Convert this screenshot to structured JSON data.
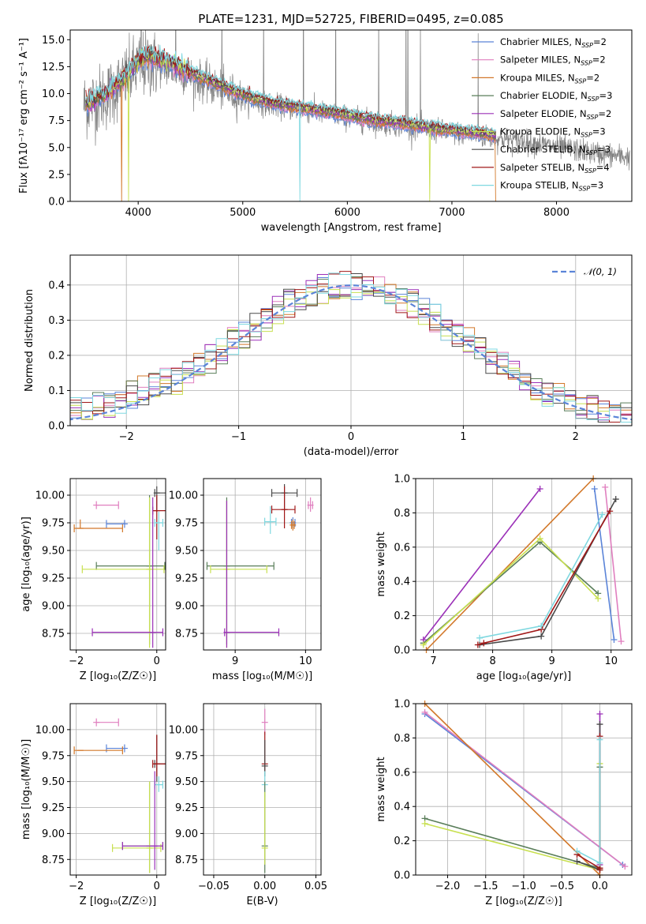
{
  "colors": {
    "Chabrier MILES": "#5b84d8",
    "Salpeter MILES": "#e07fbf",
    "Kroupa MILES": "#d2782a",
    "Chabrier ELODIE": "#5a7e5a",
    "Salpeter ELODIE": "#9b30b8",
    "Kroupa ELODIE": "#c8e050",
    "Chabrier STELIB": "#4a4a4a",
    "Salpeter STELIB": "#a01818",
    "Kroupa STELIB": "#7fd8e0"
  },
  "chart_data": [
    {
      "type": "line",
      "id": "spectrum",
      "title": "PLATE=1231, MJD=52725, FIBERID=0495, z=0.085",
      "xlabel": "wavelength [Angstrom, rest frame]",
      "ylabel": "Flux [f$_\\lambda$10$^{-17}$ erg cm$^{-2}$ s$^{-1}$ A$^{-1}$]",
      "ylabel_display": "Flux [fλ10⁻¹⁷ erg cm⁻² s⁻¹ A⁻¹]",
      "xlim": [
        3350,
        8720
      ],
      "ylim": [
        0,
        15.9
      ],
      "xticks": [
        4000,
        5000,
        6000,
        7000,
        8000
      ],
      "yticks": [
        0.0,
        2.5,
        5.0,
        7.5,
        10.0,
        12.5,
        15.0
      ],
      "grid": false,
      "legend_position": "top-right",
      "legend": [
        {
          "model": "Chabrier MILES",
          "label": "Chabrier MILES, N",
          "nssp": "2"
        },
        {
          "model": "Salpeter MILES",
          "label": "Salpeter MILES, N",
          "nssp": "2"
        },
        {
          "model": "Kroupa MILES",
          "label": "Kroupa MILES, N",
          "nssp": "2"
        },
        {
          "model": "Chabrier ELODIE",
          "label": "Chabrier ELODIE, N",
          "nssp": "3"
        },
        {
          "model": "Salpeter ELODIE",
          "label": "Salpeter ELODIE, N",
          "nssp": "2"
        },
        {
          "model": "Kroupa ELODIE",
          "label": "Kroupa ELODIE, N",
          "nssp": "3"
        },
        {
          "model": "Chabrier STELIB",
          "label": "Chabrier STELIB, N",
          "nssp": "3"
        },
        {
          "model": "Salpeter STELIB",
          "label": "Salpeter STELIB, N",
          "nssp": "4"
        },
        {
          "model": "Kroupa STELIB",
          "label": "Kroupa STELIB, N",
          "nssp": "3"
        }
      ],
      "data_continuum": {
        "x": [
          3500,
          3700,
          3850,
          4000,
          4100,
          4300,
          4500,
          4700,
          4900,
          5100,
          5300,
          5500,
          5700,
          5900,
          6100,
          6300,
          6500,
          6700,
          6900,
          7100,
          7300,
          7500,
          7700,
          7900,
          8100,
          8300,
          8500,
          8700
        ],
        "y": [
          9.0,
          9.8,
          11.0,
          12.5,
          12.8,
          12.3,
          11.6,
          10.7,
          10.0,
          9.3,
          8.9,
          8.6,
          8.3,
          8.0,
          7.6,
          7.3,
          7.1,
          6.8,
          6.5,
          6.3,
          6.0,
          5.8,
          5.5,
          5.2,
          4.9,
          4.6,
          4.3,
          4.1
        ]
      },
      "model_continuum": {
        "x": [
          3500,
          3700,
          3850,
          4000,
          4100,
          4300,
          4500,
          4700,
          4900,
          5100,
          5300,
          5500,
          5700,
          5900,
          6100,
          6300,
          6500,
          6700,
          6900,
          7100,
          7300,
          7420
        ],
        "y": [
          9.0,
          10.0,
          11.3,
          13.0,
          13.5,
          12.9,
          12.0,
          11.1,
          10.3,
          9.6,
          9.1,
          8.8,
          8.5,
          8.2,
          7.8,
          7.5,
          7.3,
          7.0,
          6.7,
          6.5,
          6.3,
          6.1
        ]
      }
    },
    {
      "type": "line",
      "id": "residual-histogram",
      "title": "",
      "xlabel": "(data-model)/error",
      "ylabel": "Normed distribution",
      "xlim": [
        -2.5,
        2.5
      ],
      "ylim": [
        0,
        0.485
      ],
      "xticks": [
        -2,
        -1,
        0,
        1,
        2
      ],
      "yticks": [
        0.0,
        0.1,
        0.2,
        0.3,
        0.4
      ],
      "grid": true,
      "legend_position": "top-right",
      "legend_label": "𝒩(0, 1)",
      "reference_curve": "normal distribution, mean 0, sigma 1 (dashed)",
      "bin_width": 0.1
    },
    {
      "type": "scatter",
      "id": "age-vs-Z",
      "xlabel": "Z [log₁₀(Z/Z☉)]",
      "ylabel": "age  [log₁₀(age/yr)]",
      "xlim": [
        -2.15,
        0.22
      ],
      "ylim": [
        8.6,
        10.15
      ],
      "xticks": [
        -2,
        0
      ],
      "yticks": [
        8.75,
        9.0,
        9.25,
        9.5,
        9.75,
        10.0
      ],
      "grid": true,
      "points": [
        {
          "model": "Salpeter MILES",
          "x": -1.5,
          "y": 9.91,
          "xlo": -1.5,
          "xhi": -0.95,
          "ylo": 9.91,
          "yhi": 9.91
        },
        {
          "model": "Chabrier MILES",
          "x": -0.8,
          "y": 9.74,
          "xlo": -1.25,
          "xhi": -0.8,
          "ylo": 9.74,
          "yhi": 9.74
        },
        {
          "model": "Kroupa MILES",
          "x": -1.9,
          "y": 9.7,
          "xlo": -2.05,
          "xhi": -0.85,
          "ylo": 9.7,
          "yhi": 9.78
        },
        {
          "model": "Chabrier STELIB",
          "x": 0.0,
          "y": 10.02,
          "xlo": -0.05,
          "xhi": 0.28,
          "ylo": 9.85,
          "yhi": 10.08
        },
        {
          "model": "Salpeter STELIB",
          "x": 0.0,
          "y": 9.86,
          "xlo": -0.1,
          "xhi": 0.28,
          "ylo": 9.6,
          "yhi": 10.0
        },
        {
          "model": "Kroupa STELIB",
          "x": 0.05,
          "y": 9.75,
          "xlo": -0.05,
          "xhi": 0.15,
          "ylo": 9.5,
          "yhi": 9.85
        },
        {
          "model": "Chabrier ELODIE",
          "x": -0.18,
          "y": 9.36,
          "xlo": -1.5,
          "xhi": 0.2,
          "ylo": 8.65,
          "yhi": 10.0
        },
        {
          "model": "Kroupa ELODIE",
          "x": -0.18,
          "y": 9.33,
          "xlo": -1.85,
          "xhi": 0.18,
          "ylo": 8.62,
          "yhi": 9.98
        },
        {
          "model": "Salpeter ELODIE",
          "x": -0.1,
          "y": 8.76,
          "xlo": -1.6,
          "xhi": 0.15,
          "ylo": 8.62,
          "yhi": 9.98
        }
      ]
    },
    {
      "type": "scatter",
      "id": "age-vs-mass",
      "xlabel": "mass [log₁₀(M/M☉)]",
      "ylabel": "",
      "xlim": [
        8.55,
        10.22
      ],
      "ylim": [
        8.6,
        10.15
      ],
      "xticks": [
        9,
        10
      ],
      "yticks": [
        8.75,
        9.0,
        9.25,
        9.5,
        9.75,
        10.0
      ],
      "grid": true,
      "points": [
        {
          "model": "Salpeter MILES",
          "x": 10.07,
          "y": 9.91,
          "xlo": 10.04,
          "xhi": 10.1,
          "ylo": 9.85,
          "yhi": 9.98
        },
        {
          "model": "Chabrier MILES",
          "x": 9.82,
          "y": 9.75,
          "xlo": 9.8,
          "xhi": 9.85,
          "ylo": 9.7,
          "yhi": 9.8
        },
        {
          "model": "Kroupa MILES",
          "x": 9.82,
          "y": 9.73,
          "xlo": 9.8,
          "xhi": 9.84,
          "ylo": 9.68,
          "yhi": 9.78
        },
        {
          "model": "Chabrier STELIB",
          "x": 9.7,
          "y": 10.02,
          "xlo": 9.52,
          "xhi": 9.88,
          "ylo": 9.86,
          "yhi": 10.1
        },
        {
          "model": "Salpeter STELIB",
          "x": 9.7,
          "y": 9.87,
          "xlo": 9.52,
          "xhi": 9.85,
          "ylo": 9.7,
          "yhi": 10.08
        },
        {
          "model": "Kroupa STELIB",
          "x": 9.5,
          "y": 9.76,
          "xlo": 9.42,
          "xhi": 9.58,
          "ylo": 9.65,
          "yhi": 9.9
        },
        {
          "model": "Chabrier ELODIE",
          "x": 8.88,
          "y": 9.36,
          "xlo": 8.6,
          "xhi": 9.55,
          "ylo": 8.65,
          "yhi": 9.98
        },
        {
          "model": "Kroupa ELODIE",
          "x": 8.88,
          "y": 9.33,
          "xlo": 8.65,
          "xhi": 9.45,
          "ylo": 8.62,
          "yhi": 9.95
        },
        {
          "model": "Salpeter ELODIE",
          "x": 8.88,
          "y": 8.76,
          "xlo": 8.85,
          "xhi": 9.62,
          "ylo": 8.62,
          "yhi": 9.95
        }
      ]
    },
    {
      "type": "line",
      "id": "mass-weight-vs-age",
      "xlabel": "age  [log₁₀(age/yr)]",
      "ylabel": "mass weight",
      "xlim": [
        6.7,
        10.35
      ],
      "ylim": [
        0,
        1.0
      ],
      "xticks": [
        7,
        8,
        9,
        10
      ],
      "yticks": [
        0.0,
        0.2,
        0.4,
        0.6,
        0.8,
        1.0
      ],
      "grid": true,
      "series": [
        {
          "model": "Chabrier MILES",
          "x": [
            9.72,
            10.05
          ],
          "y": [
            0.94,
            0.06
          ]
        },
        {
          "model": "Salpeter MILES",
          "x": [
            9.9,
            10.17
          ],
          "y": [
            0.95,
            0.05
          ]
        },
        {
          "model": "Kroupa MILES",
          "x": [
            6.88,
            9.7
          ],
          "y": [
            0.0,
            1.0
          ]
        },
        {
          "model": "Chabrier ELODIE",
          "x": [
            6.83,
            8.8,
            9.78
          ],
          "y": [
            0.04,
            0.63,
            0.33
          ]
        },
        {
          "model": "Salpeter ELODIE",
          "x": [
            6.83,
            8.8
          ],
          "y": [
            0.06,
            0.94
          ]
        },
        {
          "model": "Kroupa ELODIE",
          "x": [
            6.83,
            8.8,
            9.78
          ],
          "y": [
            0.03,
            0.65,
            0.3
          ]
        },
        {
          "model": "Chabrier STELIB",
          "x": [
            7.78,
            8.82,
            10.08
          ],
          "y": [
            0.03,
            0.08,
            0.88
          ]
        },
        {
          "model": "Salpeter STELIB",
          "x": [
            7.75,
            7.85,
            8.82,
            9.98
          ],
          "y": [
            0.03,
            0.04,
            0.12,
            0.81
          ]
        },
        {
          "model": "Kroupa STELIB",
          "x": [
            7.78,
            8.82,
            9.85
          ],
          "y": [
            0.07,
            0.14,
            0.79
          ]
        }
      ]
    },
    {
      "type": "scatter",
      "id": "mass-vs-Z",
      "xlabel": "Z [log₁₀(Z/Z☉)]",
      "ylabel": "mass [log₁₀(M/M☉)]",
      "xlim": [
        -2.15,
        0.22
      ],
      "ylim": [
        8.6,
        10.25
      ],
      "xticks": [
        -2,
        0
      ],
      "yticks": [
        8.75,
        9.0,
        9.25,
        9.5,
        9.75,
        10.0
      ],
      "grid": true,
      "points": [
        {
          "model": "Salpeter MILES",
          "x": -1.5,
          "y": 10.07,
          "xlo": -1.5,
          "xhi": -0.95,
          "ylo": 10.07,
          "yhi": 10.07
        },
        {
          "model": "Chabrier MILES",
          "x": -0.8,
          "y": 9.82,
          "xlo": -1.25,
          "xhi": -0.8,
          "ylo": 9.82,
          "yhi": 9.82
        },
        {
          "model": "Kroupa MILES",
          "x": -1.9,
          "y": 9.8,
          "xlo": -2.05,
          "xhi": -0.85,
          "ylo": 9.8,
          "yhi": 9.8
        },
        {
          "model": "Chabrier STELIB",
          "x": 0.0,
          "y": 9.67,
          "xlo": -0.05,
          "xhi": 0.28,
          "ylo": 9.5,
          "yhi": 9.95
        },
        {
          "model": "Salpeter STELIB",
          "x": 0.0,
          "y": 9.67,
          "xlo": -0.1,
          "xhi": 0.28,
          "ylo": 9.55,
          "yhi": 9.95
        },
        {
          "model": "Kroupa STELIB",
          "x": 0.05,
          "y": 9.47,
          "xlo": -0.05,
          "xhi": 0.15,
          "ylo": 9.4,
          "yhi": 9.55
        },
        {
          "model": "Chabrier ELODIE",
          "x": -0.18,
          "y": 8.88,
          "xlo": -0.85,
          "xhi": 0.15,
          "ylo": 8.62,
          "yhi": 9.5
        },
        {
          "model": "Kroupa ELODIE",
          "x": -0.18,
          "y": 8.86,
          "xlo": -1.1,
          "xhi": 0.1,
          "ylo": 8.62,
          "yhi": 9.5
        },
        {
          "model": "Salpeter ELODIE",
          "x": -0.05,
          "y": 8.88,
          "xlo": -0.85,
          "xhi": 0.15,
          "ylo": 8.65,
          "yhi": 9.6
        }
      ]
    },
    {
      "type": "scatter",
      "id": "mass-vs-ebv",
      "xlabel": "E(B-V)",
      "ylabel": "",
      "xlim": [
        -0.06,
        0.055
      ],
      "ylim": [
        8.6,
        10.25
      ],
      "xticks": [
        -0.05,
        0.0,
        0.05
      ],
      "xtick_labels": [
        "−0.05",
        "0.00",
        "0.05"
      ],
      "yticks": [
        8.75,
        9.0,
        9.25,
        9.5,
        9.75,
        10.0
      ],
      "grid": true,
      "points": [
        {
          "model": "Salpeter MILES",
          "x": 0.0,
          "y": 10.07,
          "ylo": 9.95,
          "yhi": 10.2
        },
        {
          "model": "Salpeter STELIB",
          "x": 0.0,
          "y": 9.67,
          "ylo": 9.6,
          "yhi": 9.98
        },
        {
          "model": "Chabrier STELIB",
          "x": 0.0,
          "y": 9.65,
          "ylo": 9.55,
          "yhi": 9.9
        },
        {
          "model": "Kroupa STELIB",
          "x": 0.0,
          "y": 9.47,
          "ylo": 9.35,
          "yhi": 9.6
        },
        {
          "model": "Chabrier ELODIE",
          "x": 0.0,
          "y": 8.88,
          "ylo": 8.62,
          "yhi": 9.5
        },
        {
          "model": "Kroupa ELODIE",
          "x": 0.0,
          "y": 8.86,
          "ylo": 8.7,
          "yhi": 9.4
        }
      ]
    },
    {
      "type": "line",
      "id": "mass-weight-vs-Z",
      "xlabel": "Z [log₁₀(Z/Z☉)]",
      "ylabel": "mass weight",
      "xlim": [
        -2.42,
        0.42
      ],
      "ylim": [
        0,
        1.0
      ],
      "xticks": [
        -2.0,
        -1.5,
        -1.0,
        -0.5,
        0.0
      ],
      "xtick_labels": [
        "−2.0",
        "−1.5",
        "−1.0",
        "−0.5",
        "0.0"
      ],
      "yticks": [
        0.0,
        0.2,
        0.4,
        0.6,
        0.8,
        1.0
      ],
      "grid": true,
      "series": [
        {
          "model": "Chabrier MILES",
          "x": [
            -2.3,
            0.3
          ],
          "y": [
            0.94,
            0.06
          ]
        },
        {
          "model": "Salpeter MILES",
          "x": [
            -2.3,
            0.33
          ],
          "y": [
            0.95,
            0.05
          ]
        },
        {
          "model": "Kroupa MILES",
          "x": [
            -2.3,
            0.0
          ],
          "y": [
            1.0,
            0.0
          ]
        },
        {
          "model": "Chabrier ELODIE",
          "x": [
            -2.3,
            0.0,
            0.0
          ],
          "y": [
            0.33,
            0.04,
            0.63
          ]
        },
        {
          "model": "Salpeter ELODIE",
          "x": [
            0.0,
            0.0
          ],
          "y": [
            0.06,
            0.94
          ]
        },
        {
          "model": "Kroupa ELODIE",
          "x": [
            -2.3,
            0.0,
            0.0
          ],
          "y": [
            0.3,
            0.03,
            0.65
          ]
        },
        {
          "model": "Chabrier STELIB",
          "x": [
            -0.3,
            0.0,
            0.0
          ],
          "y": [
            0.08,
            0.03,
            0.88
          ]
        },
        {
          "model": "Salpeter STELIB",
          "x": [
            -0.3,
            0.0,
            0.0,
            0.0
          ],
          "y": [
            0.12,
            0.04,
            0.03,
            0.81
          ]
        },
        {
          "model": "Kroupa STELIB",
          "x": [
            -0.3,
            0.0,
            0.0
          ],
          "y": [
            0.14,
            0.07,
            0.79
          ]
        }
      ]
    }
  ]
}
